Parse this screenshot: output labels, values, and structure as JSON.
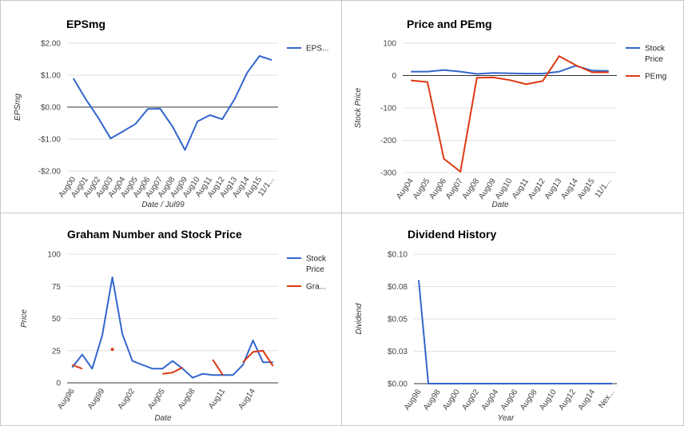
{
  "chart_data": [
    {
      "type": "line",
      "title": "EPSmg",
      "xlabel": "Date / Jul99",
      "ylabel": "EPSmg",
      "categories": [
        "Aug00",
        "Aug01",
        "Aug02",
        "Aug03",
        "Aug04",
        "Aug05",
        "Aug06",
        "Aug07",
        "Aug08",
        "Aug09",
        "Aug10",
        "Aug11",
        "Aug12",
        "Aug13",
        "Aug14",
        "Aug15",
        "11/1..."
      ],
      "ylim": [
        -2,
        2
      ],
      "yticks": [
        "$2.00",
        "$1.00",
        "$0.00",
        "-$1.00",
        "-$2.00"
      ],
      "series": [
        {
          "name": "EPS...",
          "color": "#3366cc",
          "values": [
            0.9,
            0.25,
            -0.33,
            -0.98,
            -0.76,
            -0.53,
            -0.06,
            -0.05,
            -0.61,
            -1.34,
            -0.45,
            -0.25,
            -0.38,
            0.25,
            1.07,
            1.6,
            1.47
          ]
        }
      ],
      "legend": "right",
      "grid": true
    },
    {
      "type": "line",
      "title": "Price and PEmg",
      "xlabel": "Date",
      "ylabel": "Stock Price",
      "categories": [
        "Aug04",
        "Aug05",
        "Aug06",
        "Aug07",
        "Aug08",
        "Aug09",
        "Aug10",
        "Aug11",
        "Aug12",
        "Aug13",
        "Aug14",
        "Aug15",
        "11/1..."
      ],
      "ylim": [
        -300,
        100
      ],
      "yticks": [
        "100",
        "0",
        "-100",
        "-200",
        "-300"
      ],
      "series": [
        {
          "name": "Stock Price",
          "color": "#3366cc",
          "values": [
            12,
            12,
            17,
            12,
            5,
            8,
            7,
            6,
            6,
            12,
            30,
            15,
            14
          ]
        },
        {
          "name": "PEmg",
          "color": "#dc3912",
          "values": [
            -15,
            -20,
            -257,
            -297,
            -7,
            -6,
            -14,
            -27,
            -17,
            60,
            32,
            10,
            10
          ]
        }
      ],
      "legend": "right",
      "grid": true
    },
    {
      "type": "line",
      "title": "Graham Number and Stock Price",
      "xlabel": "Date",
      "ylabel": "Price",
      "categories": [
        "Aug96",
        "Aug97",
        "Aug98",
        "Aug99",
        "Aug00",
        "Aug01",
        "Aug02",
        "Aug03",
        "Aug04",
        "Aug05",
        "Aug06",
        "Aug07",
        "Aug08",
        "Aug09",
        "Aug10",
        "Aug11",
        "Aug12",
        "Aug13",
        "Aug14",
        "Aug15",
        "11/1..."
      ],
      "xticks": [
        "Aug96",
        "Aug99",
        "Aug02",
        "Aug05",
        "Aug08",
        "Aug11",
        "Aug14"
      ],
      "ylim": [
        0,
        100
      ],
      "yticks": [
        "100",
        "75",
        "50",
        "25",
        "0"
      ],
      "series": [
        {
          "name": "Stock Price",
          "color": "#3366cc",
          "values": [
            12,
            22,
            11,
            37,
            82,
            38,
            17,
            14,
            11,
            11,
            17,
            11,
            4,
            7,
            6,
            6,
            6,
            14,
            33,
            16,
            16
          ]
        },
        {
          "name": "Gra...",
          "color": "#dc3912",
          "values": [
            14,
            11,
            null,
            null,
            26,
            null,
            null,
            null,
            null,
            7,
            8,
            12,
            null,
            null,
            18,
            6,
            null,
            16,
            24,
            25,
            13
          ]
        }
      ],
      "legend": "right",
      "grid": true
    },
    {
      "type": "line",
      "title": "Dividend History",
      "xlabel": "Year",
      "ylabel": "Dividend",
      "categories": [
        "Aug96",
        "Aug97",
        "Aug98",
        "Aug99",
        "Aug00",
        "Aug01",
        "Aug02",
        "Aug03",
        "Aug04",
        "Aug05",
        "Aug06",
        "Aug07",
        "Aug08",
        "Aug09",
        "Aug10",
        "Aug11",
        "Aug12",
        "Aug13",
        "Aug14",
        "Aug15",
        "Nex..."
      ],
      "xticks": [
        "Aug96",
        "Aug98",
        "Aug00",
        "Aug02",
        "Aug04",
        "Aug06",
        "Aug08",
        "Aug10",
        "Aug12",
        "Aug14",
        "Nex..."
      ],
      "ylim": [
        0,
        0.1
      ],
      "yticks": [
        "$0.10",
        "$0.08",
        "$0.05",
        "$0.03",
        "$0.00"
      ],
      "series": [
        {
          "name": "Dividend",
          "color": "#3366cc",
          "values": [
            0.08,
            0,
            0,
            0,
            0,
            0,
            0,
            0,
            0,
            0,
            0,
            0,
            0,
            0,
            0,
            0,
            0,
            0,
            0,
            0,
            0
          ]
        }
      ],
      "legend": "none",
      "grid": true
    }
  ]
}
